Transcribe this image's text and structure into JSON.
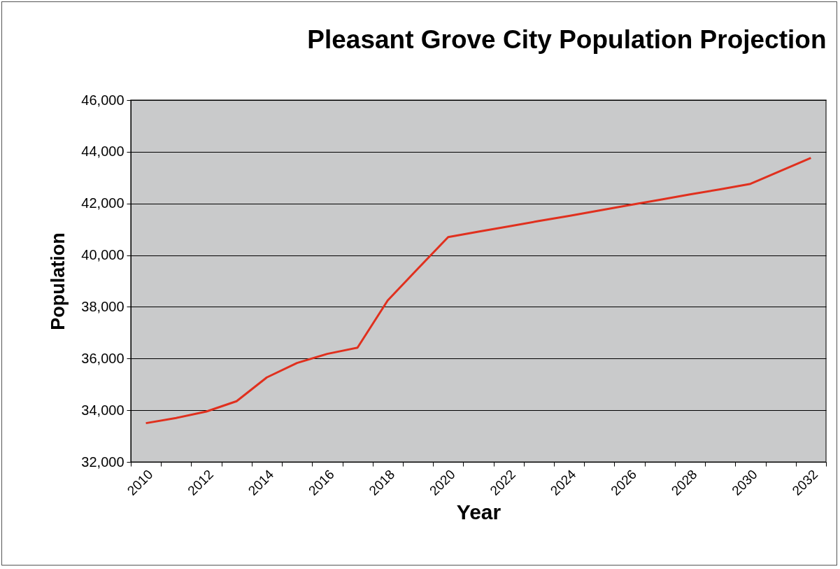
{
  "chart_data": {
    "type": "line",
    "title": "Pleasant Grove City Population Projection",
    "xlabel": "Year",
    "ylabel": "Population",
    "categories": [
      "2010",
      null,
      "2012",
      null,
      "2014",
      null,
      "2016",
      null,
      "2018",
      null,
      "2020",
      null,
      "2022",
      null,
      "2024",
      null,
      "2026",
      null,
      "2028",
      null,
      "2030",
      null,
      "2032"
    ],
    "series": [
      {
        "color": "#e0301e",
        "values": [
          33500,
          33700,
          33950,
          34350,
          35270,
          35830,
          36180,
          36420,
          38250,
          39480,
          40700,
          40910,
          41110,
          41320,
          41520,
          41730,
          41940,
          42140,
          42350,
          42550,
          42760,
          43260,
          43760
        ]
      }
    ],
    "ylim": [
      32000,
      46000
    ],
    "yticks": [
      {
        "value": 32000,
        "label": "32,000"
      },
      {
        "value": 34000,
        "label": "34,000"
      },
      {
        "value": 36000,
        "label": "36,000"
      },
      {
        "value": 38000,
        "label": "38,000"
      },
      {
        "value": 40000,
        "label": "40,000"
      },
      {
        "value": 42000,
        "label": "42,000"
      },
      {
        "value": 44000,
        "label": "44,000"
      },
      {
        "value": 46000,
        "label": "46,000"
      }
    ],
    "grid": "y"
  }
}
